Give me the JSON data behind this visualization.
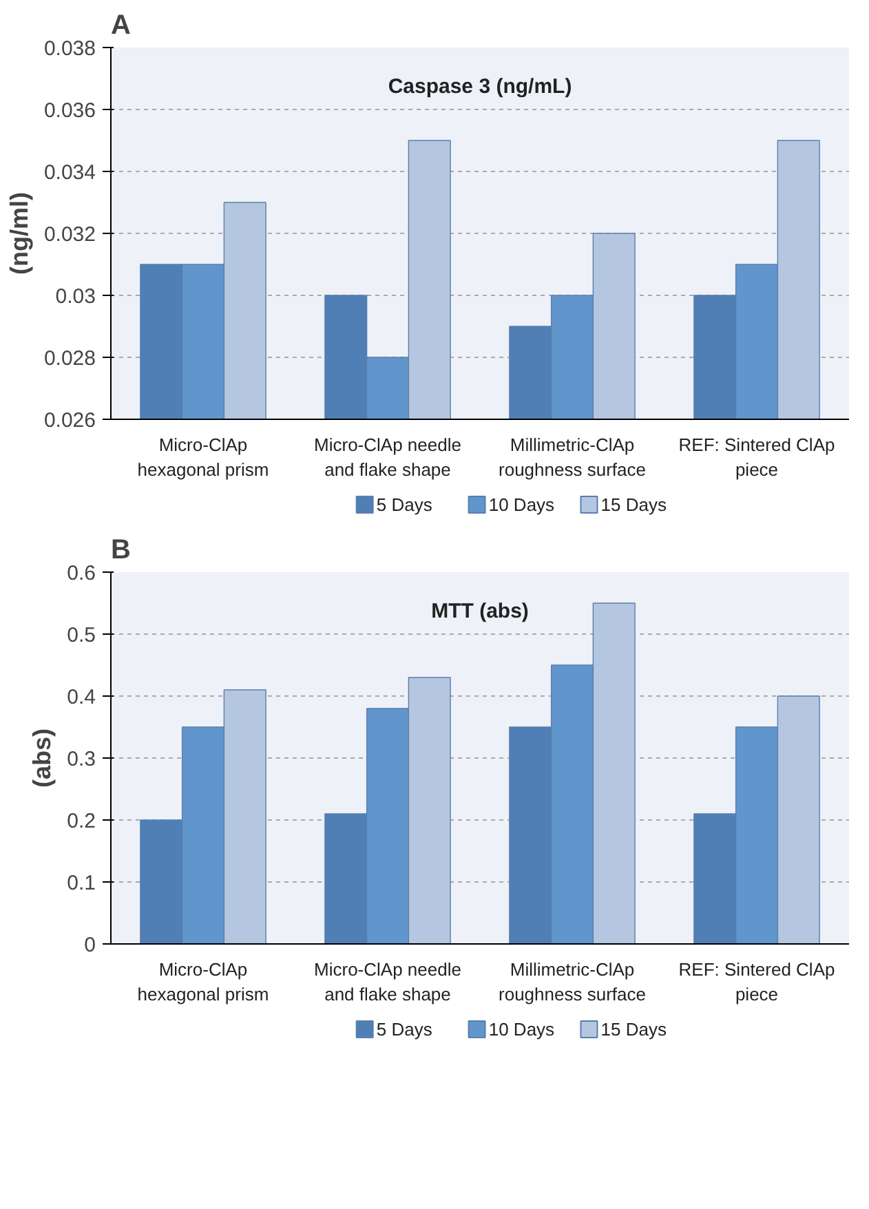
{
  "chart_data": [
    {
      "type": "bar",
      "title": "Caspase 3 (ng/mL)",
      "ylabel": "(ng/ml)",
      "annotations": [
        "A"
      ],
      "categories": [
        "Micro-ClAp\nhexagonal prism",
        "Micro-ClAp needle\nand flake shape",
        "Millimetric-ClAp\nroughness surface",
        "REF: Sintered ClAp\npiece"
      ],
      "series": [
        {
          "name": "5 Days",
          "color": "#4f7fb4",
          "values": [
            0.031,
            0.03,
            0.029,
            0.03
          ]
        },
        {
          "name": "10 Days",
          "color": "#6196cc",
          "values": [
            0.031,
            0.028,
            0.03,
            0.031
          ]
        },
        {
          "name": "15 Days",
          "color": "#b5c6e0",
          "values": [
            0.033,
            0.035,
            0.032,
            0.035
          ]
        }
      ],
      "ylim": [
        0.026,
        0.038
      ],
      "yticks": [
        0.026,
        0.028,
        0.03,
        0.032,
        0.034,
        0.036,
        0.038
      ],
      "grid": "y",
      "legend": "bottom"
    },
    {
      "type": "bar",
      "title": "MTT (abs)",
      "ylabel": "(abs)",
      "annotations": [
        "B"
      ],
      "categories": [
        "Micro-ClAp\nhexagonal prism",
        "Micro-ClAp needle\nand flake shape",
        "Millimetric-ClAp\nroughness surface",
        "REF: Sintered ClAp\npiece"
      ],
      "series": [
        {
          "name": "5 Days",
          "color": "#4f7fb4",
          "values": [
            0.2,
            0.21,
            0.35,
            0.21
          ]
        },
        {
          "name": "10 Days",
          "color": "#6196cc",
          "values": [
            0.35,
            0.38,
            0.45,
            0.35
          ]
        },
        {
          "name": "15 Days",
          "color": "#b5c6e0",
          "values": [
            0.41,
            0.43,
            0.55,
            0.4
          ]
        }
      ],
      "ylim": [
        0,
        0.6
      ],
      "yticks": [
        0,
        0.1,
        0.2,
        0.3,
        0.4,
        0.5,
        0.6
      ],
      "grid": "y",
      "legend": "bottom"
    }
  ]
}
